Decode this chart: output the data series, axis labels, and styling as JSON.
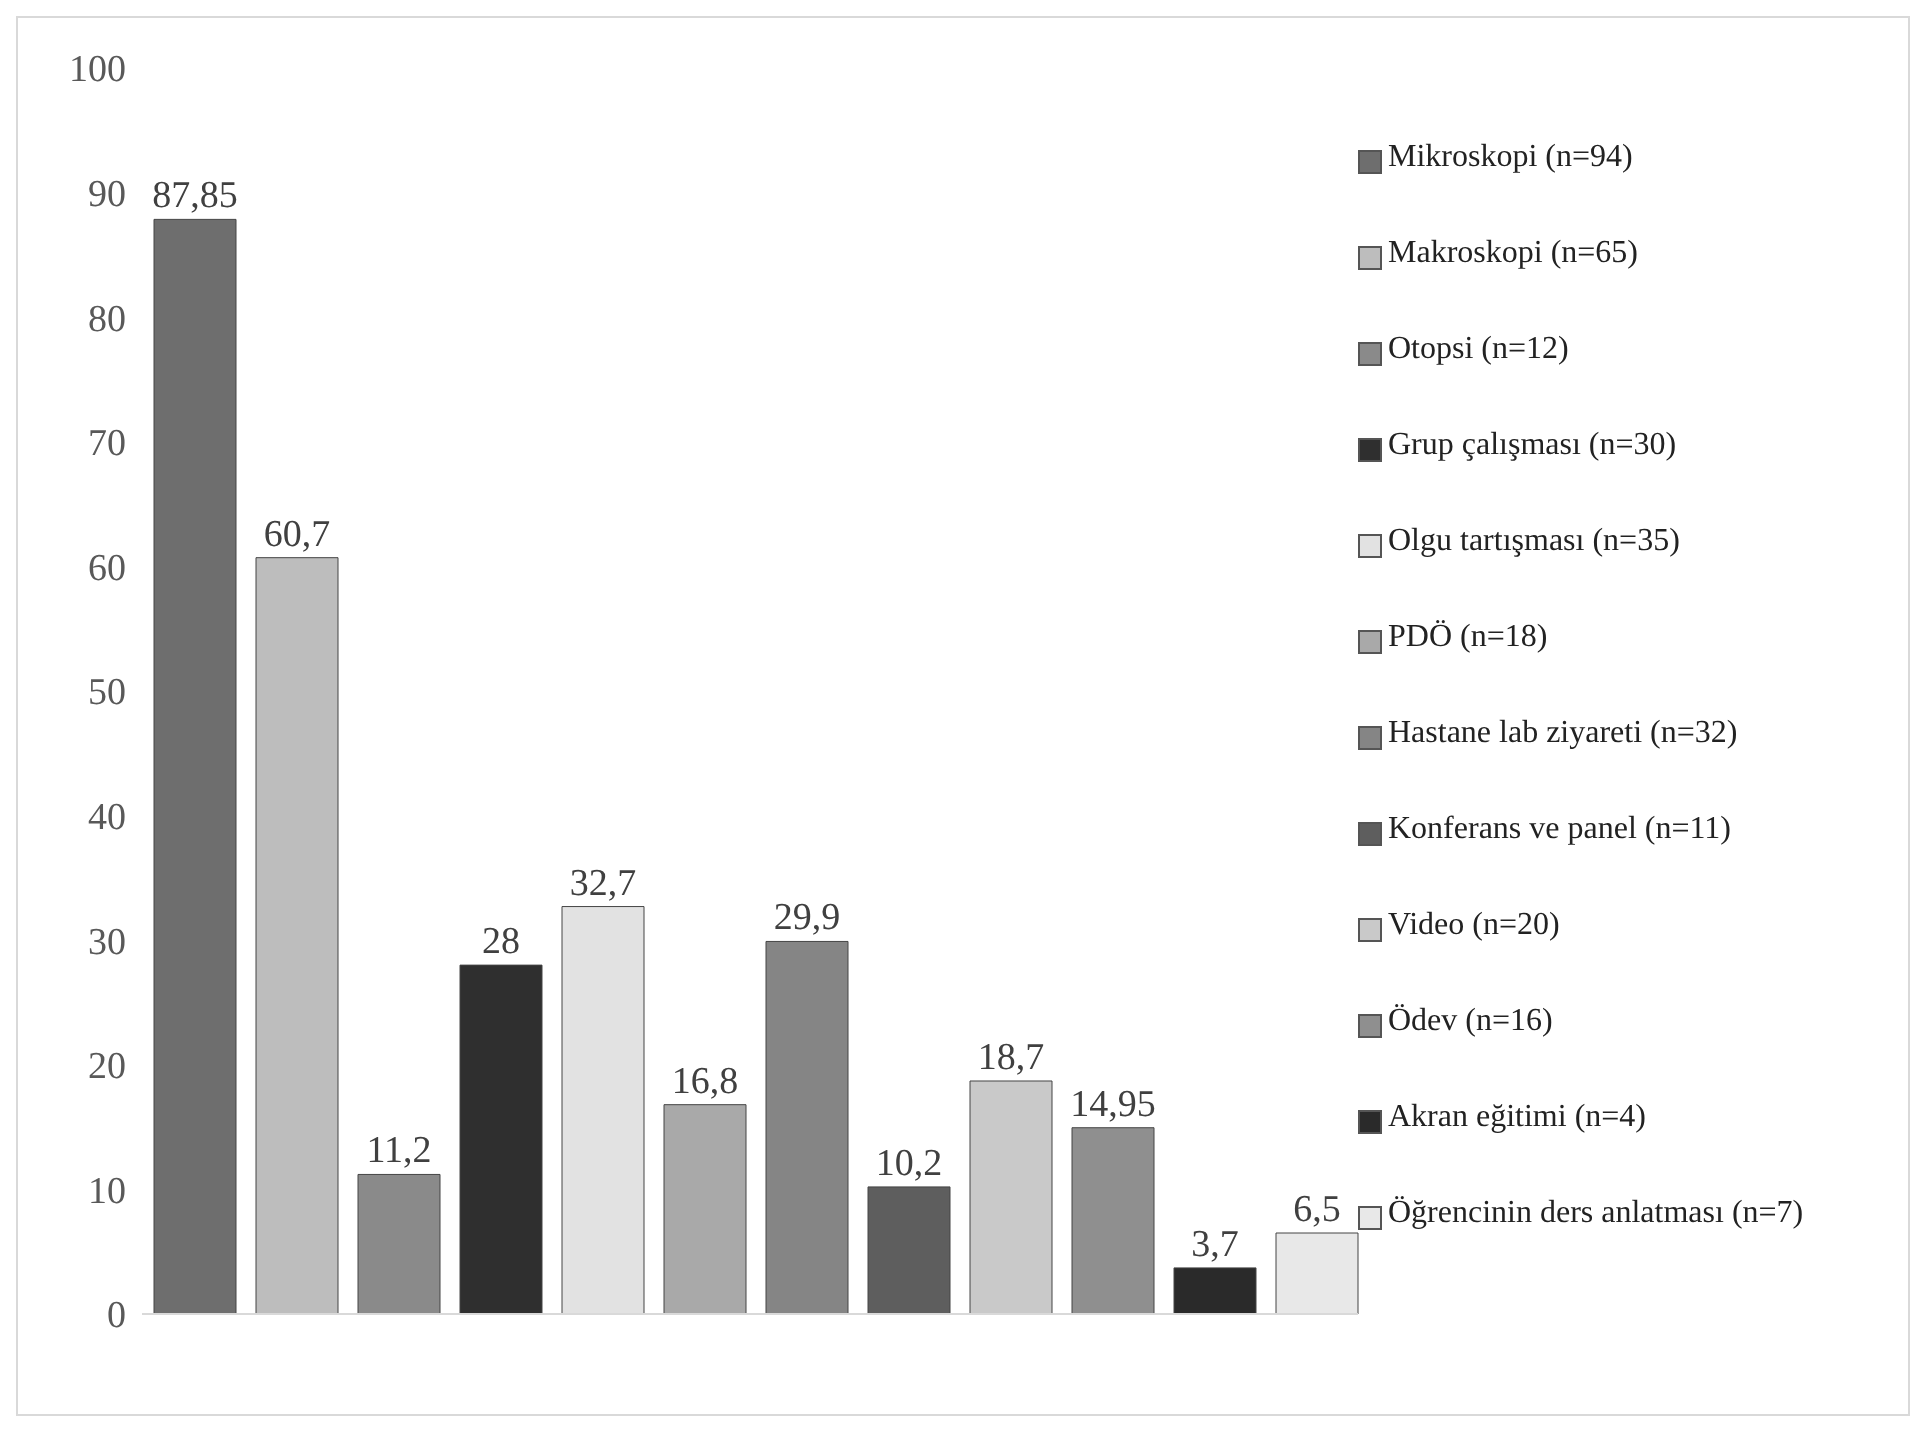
{
  "chart_data": {
    "type": "bar",
    "categories": [
      null
    ],
    "ylim": [
      0,
      100
    ],
    "yticks": [
      0,
      10,
      20,
      30,
      40,
      50,
      60,
      70,
      80,
      90,
      100
    ],
    "grid": false,
    "legend": "right",
    "series": [
      {
        "name": "Mikroskopi (n=94)",
        "color": "#6e6e6e",
        "values": [
          87.85
        ],
        "value_labels": [
          "87,85"
        ]
      },
      {
        "name": "Makroskopi (n=65)",
        "color": "#bdbdbd",
        "values": [
          60.7
        ],
        "value_labels": [
          "60,7"
        ]
      },
      {
        "name": "Otopsi (n=12)",
        "color": "#8a8a8a",
        "values": [
          11.2
        ],
        "value_labels": [
          "11,2"
        ]
      },
      {
        "name": "Grup çalışması (n=30)",
        "color": "#2f2f2f",
        "values": [
          28
        ],
        "value_labels": [
          "28"
        ]
      },
      {
        "name": "Olgu tartışması (n=35)",
        "color": "#e2e2e2",
        "values": [
          32.7
        ],
        "value_labels": [
          "32,7"
        ]
      },
      {
        "name": "PDÖ (n=18)",
        "color": "#a9a9a9",
        "values": [
          16.8
        ],
        "value_labels": [
          "16,8"
        ]
      },
      {
        "name": "Hastane lab ziyareti (n=32)",
        "color": "#858585",
        "values": [
          29.9
        ],
        "value_labels": [
          "29,9"
        ]
      },
      {
        "name": "Konferans ve panel (n=11)",
        "color": "#5e5e5e",
        "values": [
          10.2
        ],
        "value_labels": [
          "10,2"
        ]
      },
      {
        "name": "Video (n=20)",
        "color": "#c9c9c9",
        "values": [
          18.7
        ],
        "value_labels": [
          "18,7"
        ]
      },
      {
        "name": "Ödev (n=16)",
        "color": "#8f8f8f",
        "values": [
          14.95
        ],
        "value_labels": [
          "14,95"
        ]
      },
      {
        "name": "Akran eğitimi (n=4)",
        "color": "#2a2a2a",
        "values": [
          3.7
        ],
        "value_labels": [
          "3,7"
        ]
      },
      {
        "name": "Öğrencinin ders anlatması (n=7)",
        "color": "#e8e8e8",
        "values": [
          6.5
        ],
        "value_labels": [
          "6,5"
        ]
      }
    ]
  }
}
